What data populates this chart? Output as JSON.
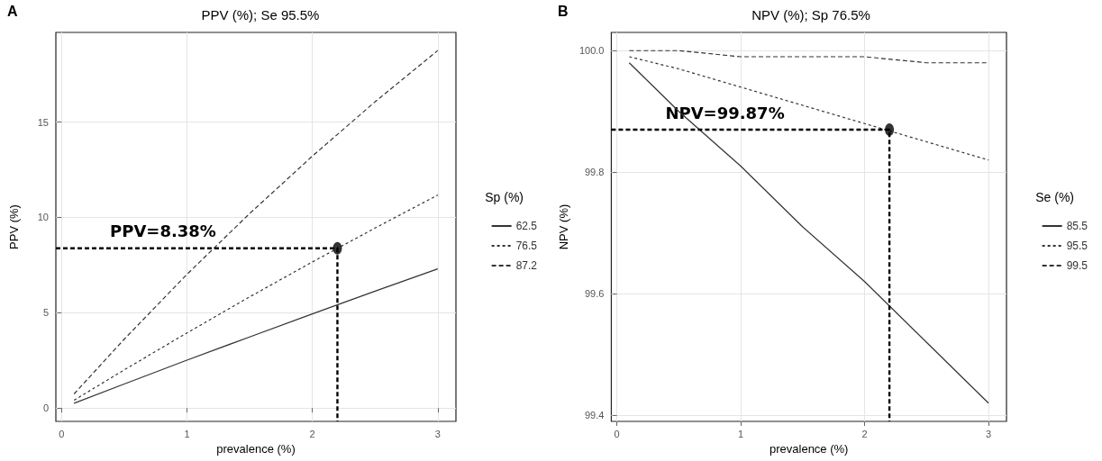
{
  "chart_data": [
    {
      "type": "line",
      "title": "PPV (%); Se 95.5%",
      "xlabel": "prevalence (%)",
      "ylabel": "PPV (%)",
      "legend_title": "Sp (%)",
      "legend": "right",
      "grid": true,
      "marker": "none",
      "xlim": [
        -0.045,
        3.145
      ],
      "xticks": [
        0,
        1,
        2,
        3
      ],
      "ylim": [
        -0.7,
        19.7
      ],
      "yticks": [
        0,
        5,
        10,
        15
      ],
      "annotations": [
        "A",
        {
          "text": "PPV=8.38%",
          "y": 8.38
        }
      ],
      "series": [
        {
          "name": "62.5",
          "color": "#333333",
          "line_style": "solid",
          "x": [
            0.1,
            0.5,
            1,
            1.5,
            2,
            2.5,
            3
          ],
          "values": [
            0.25,
            1.26,
            2.51,
            3.73,
            4.94,
            6.13,
            7.3
          ]
        },
        {
          "name": "76.5",
          "color": "#333333",
          "line_style": "dotted",
          "x": [
            0.1,
            0.5,
            1,
            1.5,
            2,
            2.5,
            3
          ],
          "values": [
            0.41,
            2.0,
            3.94,
            5.83,
            7.66,
            9.44,
            11.17
          ]
        },
        {
          "name": "87.2",
          "color": "#333333",
          "line_style": "dashed",
          "x": [
            0.1,
            0.5,
            1,
            1.5,
            2,
            2.5,
            3
          ],
          "values": [
            0.74,
            3.61,
            7.01,
            10.2,
            13.21,
            16.06,
            18.75
          ]
        },
        {
          "type": "line",
          "color": "#000000",
          "line_style": "dashed",
          "x": [
            -0.045,
            2.2,
            2.2
          ],
          "values": [
            8.38,
            8.38,
            -0.7
          ]
        },
        {
          "type": "scatter",
          "color": "#000000",
          "marker": "circle",
          "x": [
            2.2
          ],
          "values": [
            8.38
          ]
        }
      ]
    },
    {
      "type": "line",
      "title": "NPV (%); Sp 76.5%",
      "xlabel": "prevalence (%)",
      "ylabel": "NPV (%)",
      "legend_title": "Se (%)",
      "legend": "right",
      "grid": true,
      "marker": "none",
      "xlim": [
        -0.045,
        3.145
      ],
      "xticks": [
        0,
        1,
        2,
        3
      ],
      "ylim": [
        99.39,
        100.03
      ],
      "yticks": [
        99.4,
        99.6,
        99.8,
        {
          "value": 100,
          "label": "100.0"
        }
      ],
      "annotations": [
        "B",
        {
          "text": "NPV=99.87%",
          "y": 99.87
        }
      ],
      "series": [
        {
          "name": "85.5",
          "color": "#333333",
          "line_style": "solid",
          "x": [
            0.1,
            0.5,
            1,
            1.5,
            2,
            2.5,
            3
          ],
          "values": [
            99.98,
            99.9,
            99.81,
            99.71,
            99.62,
            99.52,
            99.42
          ]
        },
        {
          "name": "95.5",
          "color": "#333333",
          "line_style": "dotted",
          "x": [
            0.1,
            0.5,
            1,
            1.5,
            2,
            2.5,
            3
          ],
          "values": [
            99.99,
            99.97,
            99.94,
            99.91,
            99.88,
            99.85,
            99.82
          ]
        },
        {
          "name": "99.5",
          "color": "#333333",
          "line_style": "dashed",
          "x": [
            0.1,
            0.5,
            1,
            1.5,
            2,
            2.5,
            3
          ],
          "values": [
            100.0,
            100.0,
            99.99,
            99.99,
            99.99,
            99.98,
            99.98
          ]
        },
        {
          "type": "line",
          "color": "#000000",
          "line_style": "dashed",
          "x": [
            -0.045,
            2.2,
            2.2
          ],
          "values": [
            99.87,
            99.87,
            99.39
          ]
        },
        {
          "type": "scatter",
          "color": "#000000",
          "marker": "circle",
          "x": [
            2.2
          ],
          "values": [
            99.87
          ]
        }
      ]
    }
  ]
}
